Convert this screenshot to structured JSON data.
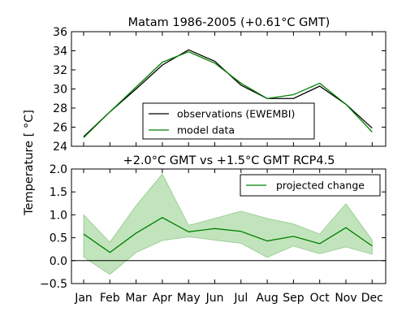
{
  "figure": {
    "ylabel": "Temperature [ °C]"
  },
  "chart_data": [
    {
      "type": "line",
      "title": "Matam 1986-2005 (+0.61°C GMT)",
      "categories": [
        "Jan",
        "Feb",
        "Mar",
        "Apr",
        "May",
        "Jun",
        "Jul",
        "Aug",
        "Sep",
        "Oct",
        "Nov",
        "Dec"
      ],
      "ylim": [
        24,
        36
      ],
      "yticks": [
        24,
        26,
        28,
        30,
        32,
        34,
        36
      ],
      "legend_position": "lower-center",
      "series": [
        {
          "name": "observations (EWEMBI)",
          "color": "#000000",
          "values": [
            25.0,
            27.6,
            30.0,
            32.5,
            34.1,
            32.9,
            30.4,
            29.0,
            29.0,
            30.3,
            28.4,
            25.9
          ]
        },
        {
          "name": "model data",
          "color": "#008000",
          "values": [
            24.9,
            27.6,
            30.2,
            32.8,
            33.9,
            32.7,
            30.6,
            29.0,
            29.4,
            30.6,
            28.4,
            25.5
          ]
        }
      ]
    },
    {
      "type": "line",
      "title": "+2.0°C GMT vs +1.5°C GMT RCP4.5",
      "categories": [
        "Jan",
        "Feb",
        "Mar",
        "Apr",
        "May",
        "Jun",
        "Jul",
        "Aug",
        "Sep",
        "Oct",
        "Nov",
        "Dec"
      ],
      "ylim": [
        -0.5,
        2.0
      ],
      "yticks": [
        "−0.5",
        "0.0",
        "0.5",
        "1.0",
        "1.5",
        "2.0"
      ],
      "ytick_values": [
        -0.5,
        0.0,
        0.5,
        1.0,
        1.5,
        2.0
      ],
      "zero_line": true,
      "legend_position": "upper-right",
      "series": [
        {
          "name": "projected change",
          "color": "#008000",
          "band_color": "#a8d8a0",
          "values": [
            0.58,
            0.18,
            0.6,
            0.94,
            0.63,
            0.7,
            0.64,
            0.43,
            0.53,
            0.37,
            0.72,
            0.32
          ],
          "lower": [
            0.08,
            -0.3,
            0.18,
            0.44,
            0.52,
            0.45,
            0.38,
            0.07,
            0.32,
            0.15,
            0.3,
            0.14
          ],
          "upper": [
            1.0,
            0.4,
            1.2,
            1.89,
            0.77,
            0.92,
            1.08,
            0.92,
            0.8,
            0.58,
            1.24,
            0.45
          ]
        }
      ]
    }
  ]
}
